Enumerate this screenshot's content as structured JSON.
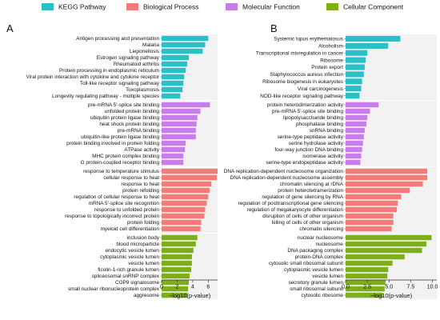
{
  "legend": [
    {
      "label": "KEGG Pathway",
      "color": "#2bbfc8"
    },
    {
      "label": "Biological Process",
      "color": "#f47c76"
    },
    {
      "label": "Molecular Function",
      "color": "#c77ee8"
    },
    {
      "label": "Cellular Component",
      "color": "#7fae1c"
    }
  ],
  "chart_data": [
    {
      "type": "bar",
      "orientation": "horizontal",
      "panel": "A",
      "xlabel": "−log10(p-value)",
      "xlim": [
        0,
        7.2
      ],
      "xticks": [
        0,
        2,
        4,
        6
      ],
      "groups": [
        {
          "name": "KEGG Pathway",
          "color": "#2bbfc8",
          "items": [
            {
              "label": "Antigen processing and presentation",
              "value": 6.0
            },
            {
              "label": "Malaria",
              "value": 5.6
            },
            {
              "label": "Legionellosis",
              "value": 5.3
            },
            {
              "label": "Estrogen signaling pathway",
              "value": 3.5
            },
            {
              "label": "Rheumatoid arthritis",
              "value": 3.3
            },
            {
              "label": "Protein processing in endoplasmic reticulum",
              "value": 3.1
            },
            {
              "label": "Viral protein interaction with cytokine and cytokine receptor",
              "value": 2.9
            },
            {
              "label": "Toll-like receptor signaling pathway",
              "value": 2.8
            },
            {
              "label": "Toxoplasmosis",
              "value": 2.7
            },
            {
              "label": "Longevity regulating pathway - multiple species",
              "value": 2.4
            }
          ]
        },
        {
          "name": "Molecular Function",
          "color": "#c77ee8",
          "items": [
            {
              "label": "pre-mRNA 5'-splice site binding",
              "value": 6.2
            },
            {
              "label": "unfolded protein binding",
              "value": 5.0
            },
            {
              "label": "ubiquitin protein ligase binding",
              "value": 4.6
            },
            {
              "label": "heat shock protein binding",
              "value": 4.5
            },
            {
              "label": "pre-mRNA binding",
              "value": 4.4
            },
            {
              "label": "ubiquitin-like protein ligase binding",
              "value": 4.4
            },
            {
              "label": "protein binding involved in protein folding",
              "value": 3.1
            },
            {
              "label": "ATPase activity",
              "value": 3.0
            },
            {
              "label": "MHC protein complex binding",
              "value": 2.8
            },
            {
              "label": "G protein-coupled receptor binding",
              "value": 2.8
            }
          ]
        },
        {
          "name": "Biological Process",
          "color": "#f47c76",
          "items": [
            {
              "label": "response to temperature stimulus",
              "value": 7.2
            },
            {
              "label": "cellular response to heat",
              "value": 7.1
            },
            {
              "label": "response to heat",
              "value": 6.4
            },
            {
              "label": "protein refolding",
              "value": 6.2
            },
            {
              "label": "regulation of cellular response to heat",
              "value": 6.0
            },
            {
              "label": "mRNA 5'-splice site recognition",
              "value": 5.8
            },
            {
              "label": "response to unfolded protein",
              "value": 5.6
            },
            {
              "label": "response to topologically incorrect protein",
              "value": 5.5
            },
            {
              "label": "protein folding",
              "value": 5.1
            },
            {
              "label": "myeloid cell differentiation",
              "value": 5.0
            }
          ]
        },
        {
          "name": "Cellular Component",
          "color": "#7fae1c",
          "items": [
            {
              "label": "inclusion body",
              "value": 4.6
            },
            {
              "label": "blood microparticle",
              "value": 4.4
            },
            {
              "label": "endocytic vesicle lumen",
              "value": 4.1
            },
            {
              "label": "cytoplasmic vesicle lumen",
              "value": 3.9
            },
            {
              "label": "vesicle lumen",
              "value": 3.9
            },
            {
              "label": "ficolin-1-rich granule lumen",
              "value": 3.8
            },
            {
              "label": "spliceosomal snRNP complex",
              "value": 3.6
            },
            {
              "label": "COP9 signalosome",
              "value": 3.5
            },
            {
              "label": "small nuclear ribonucleoprotein complex",
              "value": 3.4
            },
            {
              "label": "aggresome",
              "value": 3.3
            }
          ]
        }
      ]
    },
    {
      "type": "bar",
      "orientation": "horizontal",
      "panel": "B",
      "xlabel": "−log10(p-value)",
      "xlim": [
        0,
        10.5
      ],
      "xticks": [
        0,
        2.5,
        5,
        7.5,
        10
      ],
      "xtick_labels": [
        "0.0",
        "2.5",
        "5.0",
        "7.5",
        "10.0"
      ],
      "groups": [
        {
          "name": "KEGG Pathway",
          "color": "#2bbfc8",
          "items": [
            {
              "label": "Systemic lupus erythematosus",
              "value": 6.3
            },
            {
              "label": "Alcoholism",
              "value": 4.9
            },
            {
              "label": "Transcriptional misregulation in cancer",
              "value": 2.5
            },
            {
              "label": "Ribosome",
              "value": 2.3
            },
            {
              "label": "Protein export",
              "value": 2.2
            },
            {
              "label": "Staphylococcus aureus infection",
              "value": 2.1
            },
            {
              "label": "Ribosome biogenesis in eukaryotes",
              "value": 1.9
            },
            {
              "label": "Viral carcinogenesis",
              "value": 1.8
            },
            {
              "label": "NOD-like receptor signaling pathway",
              "value": 1.6
            }
          ]
        },
        {
          "name": "Molecular Function",
          "color": "#c77ee8",
          "items": [
            {
              "label": "protein heterodimerization activity",
              "value": 3.8
            },
            {
              "label": "pre-mRNA 5'-splice site binding",
              "value": 2.8
            },
            {
              "label": "lipopolysaccharide binding",
              "value": 2.5
            },
            {
              "label": "phosphatase binding",
              "value": 2.4
            },
            {
              "label": "snRNA binding",
              "value": 2.2
            },
            {
              "label": "serine-type peptidase activity",
              "value": 2.1
            },
            {
              "label": "serine hydrolase activity",
              "value": 2.0
            },
            {
              "label": "four-way junction DNA binding",
              "value": 1.9
            },
            {
              "label": "isomerase activity",
              "value": 1.8
            },
            {
              "label": "serine-type endopeptidase activity",
              "value": 1.7
            }
          ]
        },
        {
          "name": "Biological Process",
          "color": "#f47c76",
          "items": [
            {
              "label": "DNA replication-dependent nucleosome organization",
              "value": 9.4
            },
            {
              "label": "DNA replication-dependent nucleosome assembly",
              "value": 9.4
            },
            {
              "label": "chromatin silencing at rDNA",
              "value": 8.9
            },
            {
              "label": "protein heterotetramerization",
              "value": 7.4
            },
            {
              "label": "regulation of gene silencing by RNA",
              "value": 6.4
            },
            {
              "label": "regulation of posttranscriptional gene silencing",
              "value": 6.0
            },
            {
              "label": "regulation of megakaryocyte differentiation",
              "value": 5.9
            },
            {
              "label": "disruption of cells of other organism",
              "value": 5.5
            },
            {
              "label": "killing of cells of other organism",
              "value": 5.5
            },
            {
              "label": "chromatin silencing",
              "value": 5.3
            }
          ]
        },
        {
          "name": "Cellular Component",
          "color": "#7fae1c",
          "items": [
            {
              "label": "nuclear nucleosome",
              "value": 9.9
            },
            {
              "label": "nucleosome",
              "value": 9.3
            },
            {
              "label": "DNA packaging complex",
              "value": 8.8
            },
            {
              "label": "protein-DNA complex",
              "value": 6.8
            },
            {
              "label": "cytosolic small ribosomal subunit",
              "value": 5.4
            },
            {
              "label": "cytoplasmic vesicle lumen",
              "value": 4.9
            },
            {
              "label": "vesicle lumen",
              "value": 4.8
            },
            {
              "label": "secretory granule lumen",
              "value": 4.6
            },
            {
              "label": "small ribosomal subunit",
              "value": 4.5
            },
            {
              "label": "cytosolic ribosome",
              "value": 4.3
            }
          ]
        }
      ]
    }
  ]
}
